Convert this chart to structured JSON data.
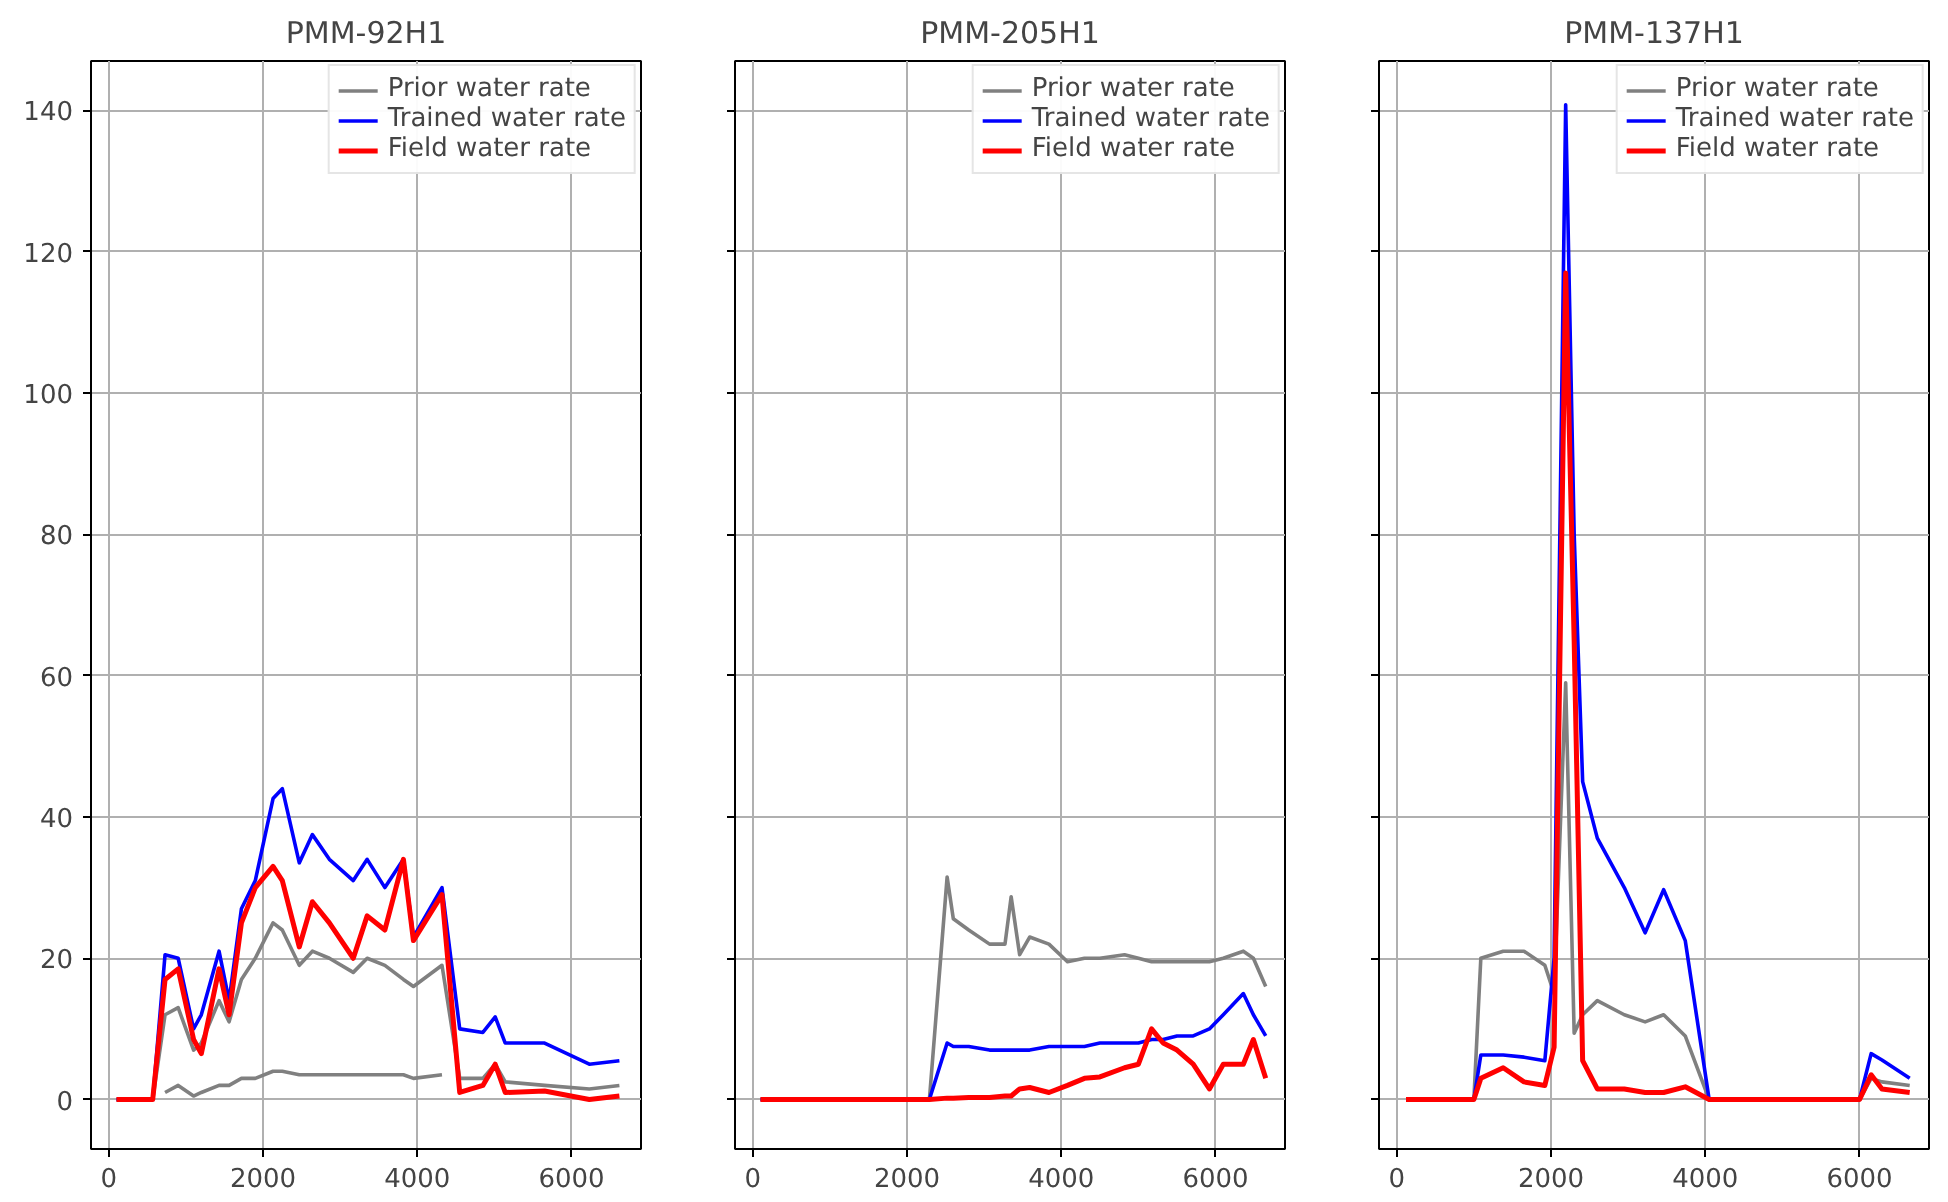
{
  "chart_data": [
    {
      "type": "line",
      "title": "PMM-92H1",
      "xlim": [
        -230,
        6900
      ],
      "ylim": [
        -7,
        147
      ],
      "xticks": [
        0,
        2000,
        4000,
        6000
      ],
      "yticks": [
        0,
        20,
        40,
        60,
        80,
        100,
        120,
        140
      ],
      "grid": true,
      "legend": "top right",
      "x": [
        100,
        570,
        730,
        900,
        1100,
        1200,
        1430,
        1560,
        1720,
        1900,
        2130,
        2250,
        2470,
        2640,
        2860,
        3170,
        3350,
        3580,
        3820,
        3950,
        4320,
        4550,
        4850,
        5010,
        5140,
        5650,
        6230,
        6620
      ],
      "series": [
        {
          "name": "Prior water rate",
          "color": "#808080",
          "values": [
            0,
            0,
            12,
            13,
            7,
            8,
            14,
            11,
            17,
            20,
            25,
            24,
            19,
            21,
            20,
            18,
            20,
            19,
            17,
            16,
            19,
            3,
            3,
            5,
            2.5,
            2,
            1.5,
            2
          ]
        },
        {
          "color": "#808080",
          "x": [
            730,
            900,
            1100,
            1200,
            1430,
            1560,
            1720,
            1900,
            2130,
            2250,
            2470,
            2640,
            2860,
            3170,
            3350,
            3580,
            3820,
            3950,
            4320
          ],
          "values": [
            1,
            2,
            0.5,
            1,
            2,
            2,
            3,
            3,
            4,
            4,
            3.5,
            3.5,
            3.5,
            3.5,
            3.5,
            3.5,
            3.5,
            3,
            3.5
          ]
        },
        {
          "name": "Trained water rate",
          "color": "#0000ff",
          "values": [
            0,
            0,
            20.5,
            20,
            10,
            12,
            21,
            14,
            27,
            31,
            42.6,
            44,
            33.5,
            37.5,
            34,
            31,
            34,
            30,
            34,
            23,
            30,
            10,
            9.5,
            11.7,
            8,
            8,
            5,
            5.5
          ]
        },
        {
          "name": "Field water rate",
          "color": "#ff0000",
          "values": [
            0,
            0,
            17,
            18.5,
            8.5,
            6.5,
            18.5,
            12,
            25,
            30,
            33,
            31,
            21.6,
            28,
            25,
            20,
            26,
            24,
            34,
            22.5,
            29,
            1,
            2,
            5,
            1,
            1.2,
            0,
            0.5
          ]
        }
      ]
    },
    {
      "type": "line",
      "title": "PMM-205H1",
      "xlim": [
        -230,
        6900
      ],
      "ylim": [
        -7,
        147
      ],
      "xticks": [
        0,
        2000,
        4000,
        6000
      ],
      "yticks": [
        0,
        20,
        40,
        60,
        80,
        100,
        120,
        140
      ],
      "grid": true,
      "legend": "top right",
      "tick_labels": "x",
      "x": [
        100,
        2290,
        2520,
        2600,
        2800,
        3070,
        3270,
        3350,
        3460,
        3590,
        3840,
        4080,
        4300,
        4500,
        4820,
        5000,
        5170,
        5320,
        5500,
        5710,
        5920,
        6100,
        6360,
        6490,
        6650
      ],
      "series": [
        {
          "name": "Prior water rate",
          "color": "#808080",
          "values": [
            0,
            0,
            31.5,
            25.6,
            24,
            22,
            22,
            28.7,
            20.5,
            23,
            22,
            19.5,
            20,
            20,
            20.5,
            20,
            19.5,
            19.5,
            19.5,
            19.5,
            19.5,
            20,
            21,
            20,
            16
          ]
        },
        {
          "name": "Trained water rate",
          "color": "#0000ff",
          "values": [
            0,
            0,
            8,
            7.5,
            7.5,
            7,
            7,
            7,
            7,
            7,
            7.5,
            7.5,
            7.5,
            8,
            8,
            8,
            8.5,
            8.5,
            9,
            9,
            10,
            12,
            15,
            12,
            9
          ]
        },
        {
          "name": "Field water rate",
          "color": "#ff0000",
          "values": [
            0,
            0,
            0.2,
            0.2,
            0.3,
            0.3,
            0.5,
            0.5,
            1.5,
            1.7,
            1,
            2,
            3,
            3.2,
            4.5,
            5,
            10,
            8,
            7,
            5,
            1.5,
            5,
            5,
            8.5,
            3
          ]
        }
      ]
    },
    {
      "type": "line",
      "title": "PMM-137H1",
      "xlim": [
        -230,
        6900
      ],
      "ylim": [
        -7,
        147
      ],
      "xticks": [
        0,
        2000,
        4000,
        6000
      ],
      "yticks": [
        0,
        20,
        40,
        60,
        80,
        100,
        120,
        140
      ],
      "grid": true,
      "legend": "top right",
      "tick_labels": "x",
      "x": [
        120,
        1000,
        1090,
        1380,
        1650,
        1920,
        2040,
        2190,
        2300,
        2410,
        2600,
        2950,
        3220,
        3460,
        3740,
        4050,
        6000,
        6150,
        6290,
        6650
      ],
      "series": [
        {
          "name": "Prior water rate",
          "color": "#808080",
          "values": [
            0,
            0,
            20,
            21,
            21,
            19,
            15,
            59,
            9.4,
            12,
            14,
            12,
            11,
            12,
            9,
            0,
            0,
            3,
            2.5,
            2
          ]
        },
        {
          "name": "Trained water rate",
          "color": "#0000ff",
          "values": [
            0,
            0,
            6.3,
            6.3,
            6,
            5.5,
            20,
            140.8,
            80,
            45,
            37,
            30,
            23.6,
            29.7,
            22.5,
            0,
            0,
            6.5,
            5.6,
            3
          ]
        },
        {
          "name": "Field water rate",
          "color": "#ff0000",
          "values": [
            0,
            0,
            3,
            4.5,
            2.5,
            2,
            7.4,
            117,
            65,
            5.5,
            1.5,
            1.5,
            1,
            1,
            1.8,
            0,
            0,
            3.5,
            1.5,
            1
          ]
        }
      ]
    }
  ]
}
